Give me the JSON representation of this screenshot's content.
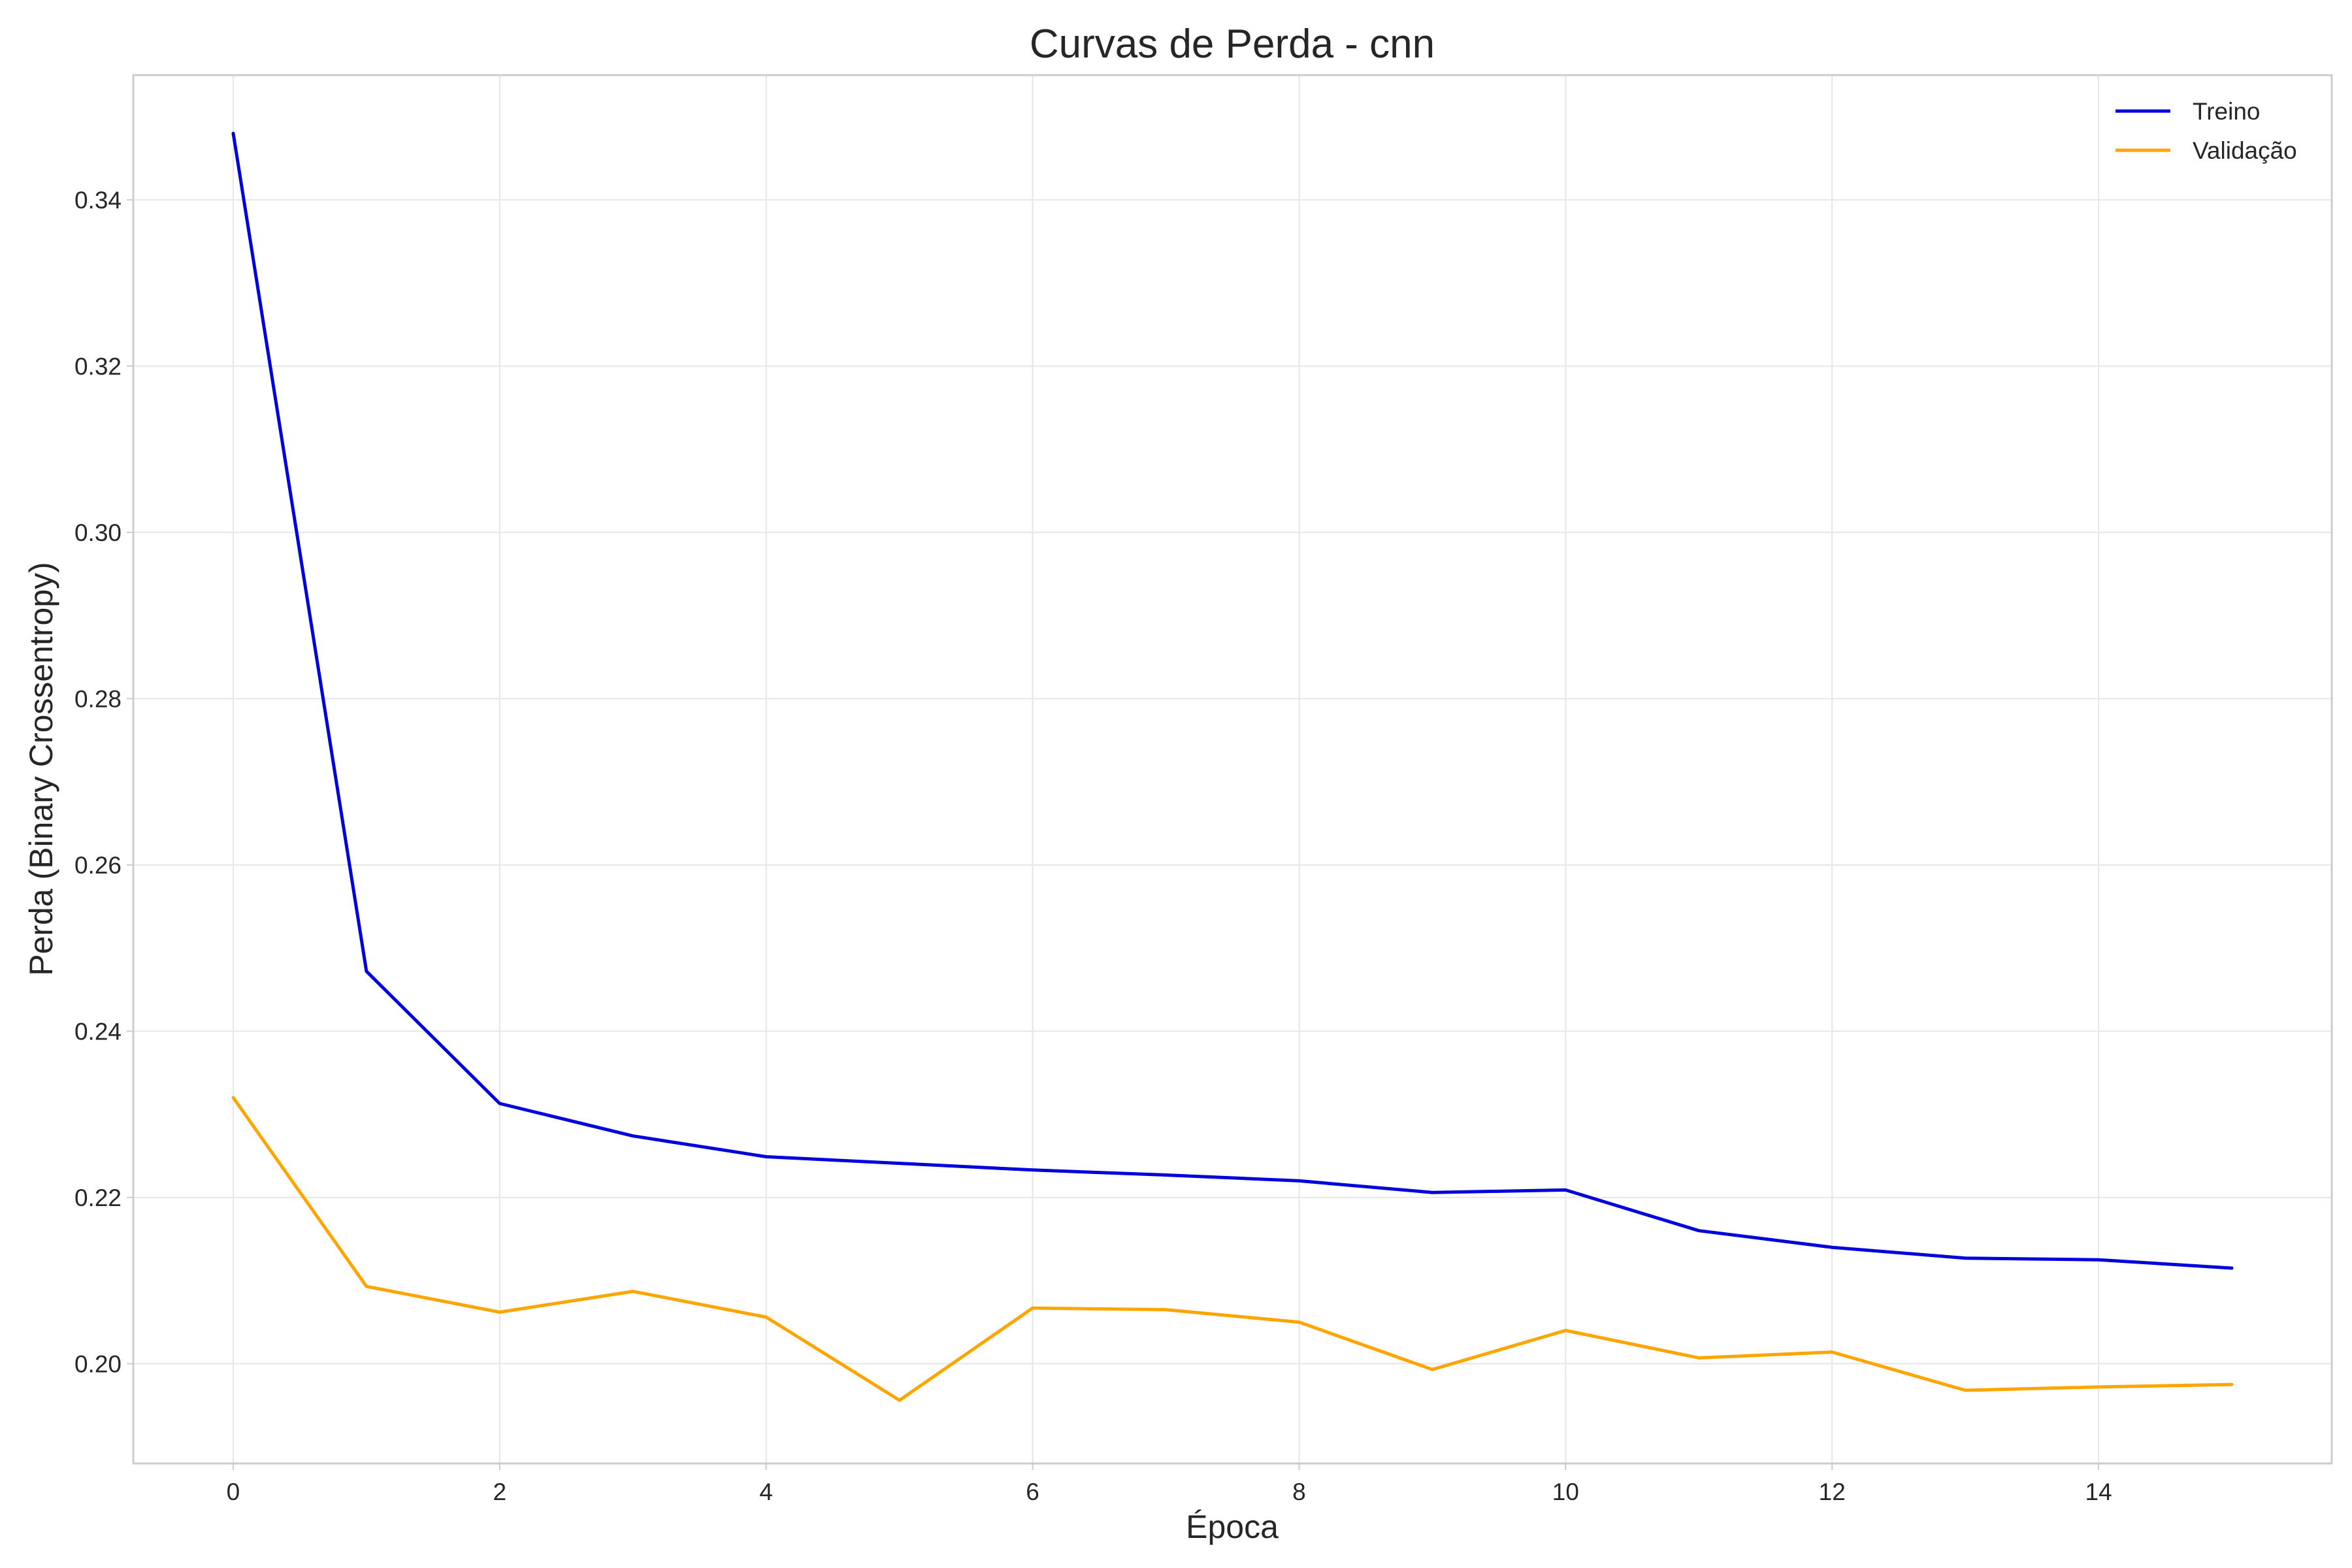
{
  "chart_data": {
    "type": "line",
    "title": "Curvas de Perda - cnn",
    "xlabel": "Época",
    "ylabel": "Perda (Binary Crossentropy)",
    "xlim": [
      -0.75,
      15.75
    ],
    "ylim": [
      0.188,
      0.355
    ],
    "xticks": [
      0,
      2,
      4,
      6,
      8,
      10,
      12,
      14
    ],
    "yticks": [
      0.2,
      0.22,
      0.24,
      0.26,
      0.28,
      0.3,
      0.32,
      0.34
    ],
    "grid": true,
    "legend_position": "top-right",
    "x": [
      0,
      1,
      2,
      3,
      4,
      5,
      6,
      7,
      8,
      9,
      10,
      11,
      12,
      13,
      14,
      15
    ],
    "series": [
      {
        "name": "Treino",
        "color": "#0000dd",
        "values": [
          0.348,
          0.2472,
          0.2313,
          0.2274,
          0.2249,
          0.2241,
          0.2233,
          0.2227,
          0.222,
          0.2206,
          0.2209,
          0.216,
          0.214,
          0.2127,
          0.2125,
          0.2115
        ]
      },
      {
        "name": "Validação",
        "color": "#ffa500",
        "values": [
          0.232,
          0.2093,
          0.2062,
          0.2087,
          0.2056,
          0.1956,
          0.2067,
          0.2065,
          0.205,
          0.1993,
          0.204,
          0.2007,
          0.2014,
          0.1968,
          0.1972,
          0.1975
        ]
      }
    ]
  }
}
